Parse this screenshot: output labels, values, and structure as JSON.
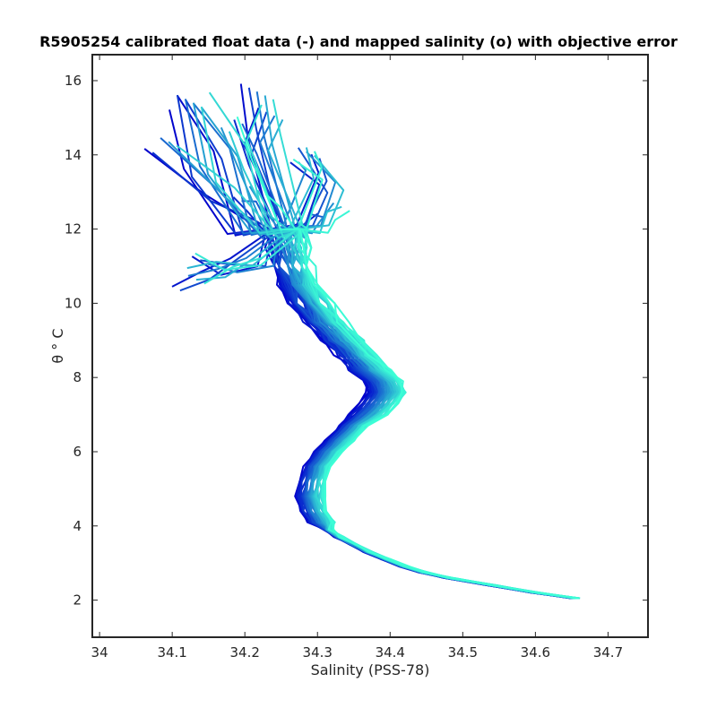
{
  "chart_data": {
    "type": "line",
    "title": "R5905254 calibrated float data (-) and mapped salinity (o) with objective error",
    "xlabel": "Salinity (PSS-78)",
    "ylabel": "θ ° C",
    "xlim": [
      33.99,
      34.755
    ],
    "ylim": [
      1.0,
      16.7
    ],
    "xticks": [
      34,
      34.1,
      34.2,
      34.3,
      34.4,
      34.5,
      34.6,
      34.7
    ],
    "xtick_labels": [
      "34",
      "34.1",
      "34.2",
      "34.3",
      "34.4",
      "34.5",
      "34.6",
      "34.7"
    ],
    "yticks": [
      2,
      4,
      6,
      8,
      10,
      12,
      14,
      16
    ],
    "ytick_labels": [
      "2",
      "4",
      "6",
      "8",
      "10",
      "12",
      "14",
      "16"
    ],
    "grid": false,
    "legend": "none",
    "colormap": {
      "start": "#0000cc",
      "end": "#3dffd6"
    },
    "series_count": 60,
    "base_profile": {
      "theta": [
        2.05,
        2.2,
        2.4,
        2.6,
        2.75,
        2.9,
        3.1,
        3.3,
        3.5,
        3.7,
        3.9,
        4.1,
        4.4,
        4.8,
        5.2,
        5.6,
        6.0,
        6.3,
        6.7,
        7.0,
        7.3,
        7.6,
        7.9,
        8.2,
        8.6,
        9.0,
        9.5,
        10.0,
        10.5,
        11.0,
        11.5,
        12.0
      ],
      "salinity": [
        34.655,
        34.6,
        34.54,
        34.48,
        34.445,
        34.42,
        34.395,
        34.37,
        34.35,
        34.33,
        34.315,
        34.305,
        34.295,
        34.29,
        34.293,
        34.3,
        34.315,
        34.33,
        34.35,
        34.37,
        34.385,
        34.395,
        34.39,
        34.375,
        34.355,
        34.335,
        34.31,
        34.29,
        34.275,
        34.265,
        34.26,
        34.255
      ]
    },
    "series_tops": [
      {
        "theta": [
          12.0,
          13.0,
          14.3
        ],
        "salinity": [
          34.23,
          34.17,
          34.09
        ]
      },
      {
        "theta": [
          12.0,
          13.5,
          15.4
        ],
        "salinity": [
          34.2,
          34.14,
          34.12
        ]
      },
      {
        "theta": [
          12.0,
          14.0,
          15.5
        ],
        "salinity": [
          34.22,
          34.19,
          34.14
        ]
      },
      {
        "theta": [
          12.0,
          14.5,
          15.7
        ],
        "salinity": [
          34.25,
          34.22,
          34.21
        ]
      },
      {
        "theta": [
          12.0,
          14.2,
          15.1
        ],
        "salinity": [
          34.26,
          34.21,
          34.23
        ]
      },
      {
        "theta": [
          11.0,
          10.8,
          10.5
        ],
        "salinity": [
          34.2,
          34.16,
          34.12
        ]
      },
      {
        "theta": [
          11.0,
          10.9,
          11.2
        ],
        "salinity": [
          34.22,
          34.17,
          34.13
        ]
      },
      {
        "theta": [
          12.0,
          13.5,
          14.0
        ],
        "salinity": [
          34.27,
          34.3,
          34.29
        ]
      },
      {
        "theta": [
          12.0,
          13.2,
          14.0
        ],
        "salinity": [
          34.29,
          34.31,
          34.27
        ]
      },
      {
        "theta": [
          12.0,
          12.3,
          12.5
        ],
        "salinity": [
          34.3,
          34.31,
          34.33
        ]
      },
      {
        "theta": [
          12.0,
          12.5,
          13.0
        ],
        "salinity": [
          34.25,
          34.23,
          34.21
        ]
      },
      {
        "theta": [
          12.0,
          13.8,
          14.8
        ],
        "salinity": [
          34.24,
          34.2,
          34.18
        ]
      }
    ]
  }
}
